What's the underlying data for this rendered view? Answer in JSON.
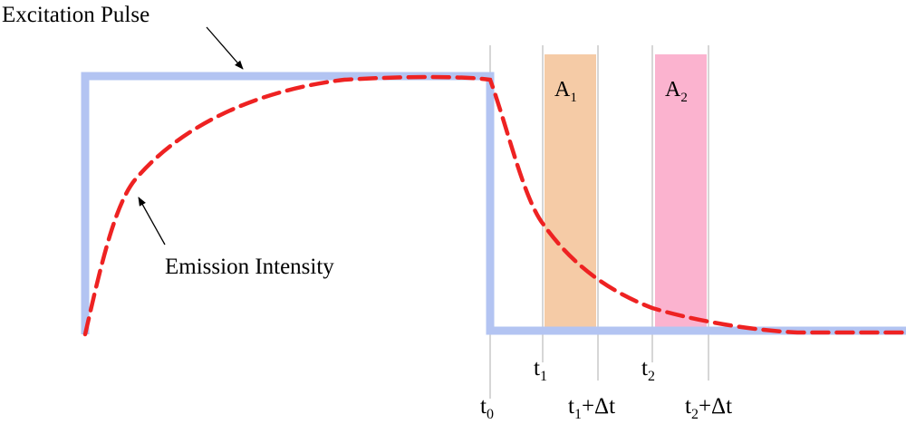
{
  "labels": {
    "excitation_pulse": "Excitation Pulse",
    "emission_intensity": "Emission Intensity",
    "gate1": {
      "base": "A",
      "sub": "1"
    },
    "gate2": {
      "base": "A",
      "sub": "2"
    },
    "t0": {
      "base": "t",
      "sub": "0"
    },
    "t1": {
      "base": "t",
      "sub": "1"
    },
    "t2": {
      "base": "t",
      "sub": "2"
    },
    "t1_dt": {
      "base": "t",
      "sub": "1",
      "suffix": "+Δt"
    },
    "t2_dt": {
      "base": "t",
      "sub": "2",
      "suffix": "+Δt"
    }
  },
  "colors": {
    "pulse": "#b3c4f2",
    "emission": "#ee2222",
    "gate1": "#f5cba6",
    "gate2": "#fbb3cf",
    "guide": "#c9c9c9",
    "text": "#000000"
  }
}
